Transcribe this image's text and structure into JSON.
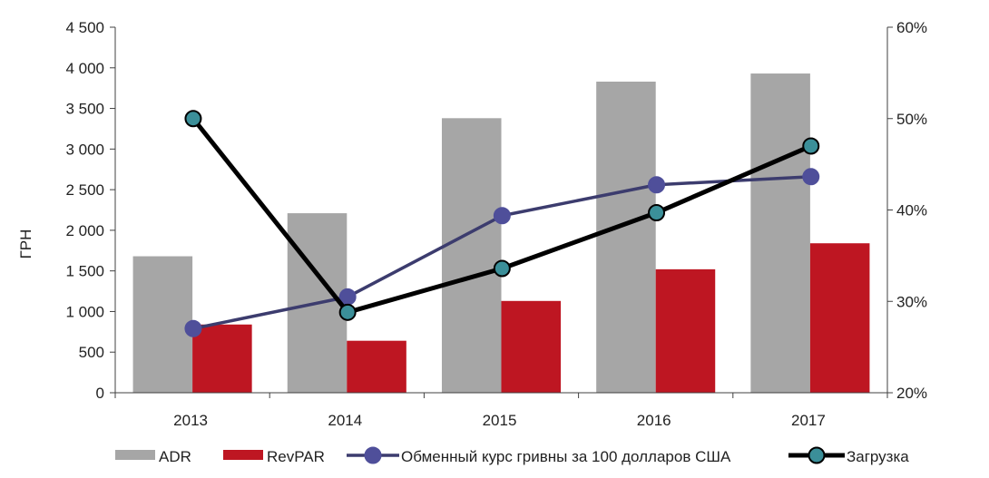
{
  "chart_data": {
    "type": "bar",
    "categories": [
      "2013",
      "2014",
      "2015",
      "2016",
      "2017"
    ],
    "ylabel": "ГРН",
    "ylim": [
      0,
      4500
    ],
    "yticks": [
      "0",
      "500",
      "1 000",
      "1 500",
      "2 000",
      "2 500",
      "3 000",
      "3 500",
      "4 000",
      "4 500"
    ],
    "y2lim": [
      0.2,
      0.6
    ],
    "y2ticks": [
      "20%",
      "30%",
      "40%",
      "50%",
      "60%"
    ],
    "grid": false,
    "legend": "bottom",
    "series": [
      {
        "name": "ADR",
        "type": "bar",
        "axis": "left",
        "color": "#a6a6a6",
        "values": [
          1680,
          2210,
          3380,
          3830,
          3930
        ]
      },
      {
        "name": "RevPAR",
        "type": "bar",
        "axis": "left",
        "color": "#be1622",
        "values": [
          840,
          640,
          1130,
          1520,
          1840
        ]
      },
      {
        "name": "Обменный курс гривны за 100 долларов США",
        "type": "line",
        "axis": "left",
        "color": "#3c3c6e",
        "marker_color": "#4f4f9a",
        "values": [
          790,
          1180,
          2180,
          2560,
          2660
        ]
      },
      {
        "name": "Загрузка",
        "type": "line",
        "axis": "right",
        "color": "#000000",
        "marker_color": "#3b8f99",
        "values": [
          0.5,
          0.288,
          0.336,
          0.397,
          0.47
        ]
      }
    ]
  }
}
